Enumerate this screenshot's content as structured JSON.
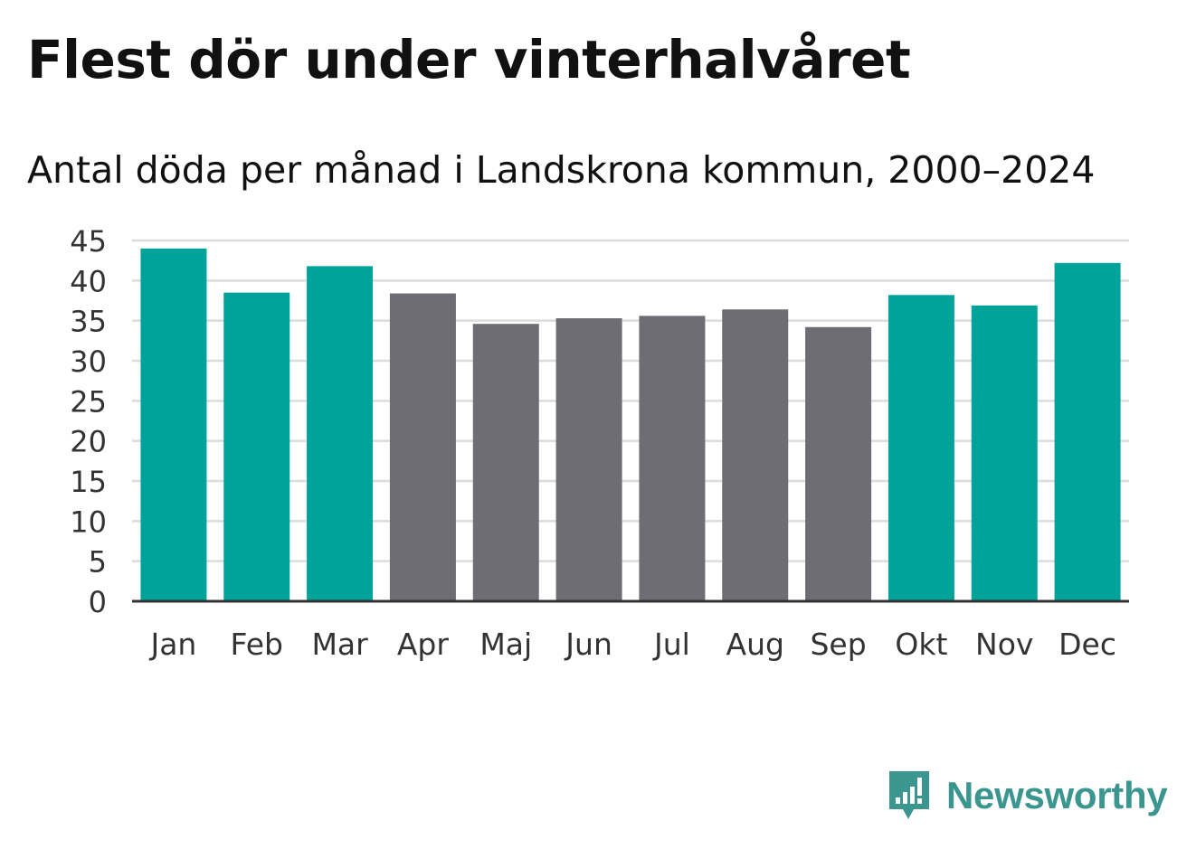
{
  "title": "Flest dör under vinterhalvåret",
  "subtitle": "Antal döda per månad i Landskrona kommun, 2000–2024",
  "brand": {
    "name": "Newsworthy",
    "color": "#3a968f",
    "icon": "newsworthy-bar-chart-speech-bubble-icon"
  },
  "colors": {
    "winter": "#00a39a",
    "summer": "#6e6d73",
    "grid": "#dcdcdc",
    "axis": "#333333"
  },
  "chart_data": {
    "type": "bar",
    "title": "Flest dör under vinterhalvåret",
    "subtitle": "Antal döda per månad i Landskrona kommun, 2000–2024",
    "xlabel": "",
    "ylabel": "",
    "ylim": [
      0,
      45
    ],
    "yticks": [
      0,
      5,
      10,
      15,
      20,
      25,
      30,
      35,
      40,
      45
    ],
    "grid": true,
    "legend": "none",
    "categories": [
      "Jan",
      "Feb",
      "Mar",
      "Apr",
      "Maj",
      "Jun",
      "Jul",
      "Aug",
      "Sep",
      "Okt",
      "Nov",
      "Dec"
    ],
    "values": [
      44.0,
      38.5,
      41.8,
      38.4,
      34.6,
      35.3,
      35.6,
      36.4,
      34.2,
      38.2,
      36.9,
      42.2
    ],
    "group": [
      "winter",
      "winter",
      "winter",
      "summer",
      "summer",
      "summer",
      "summer",
      "summer",
      "summer",
      "winter",
      "winter",
      "winter"
    ]
  }
}
